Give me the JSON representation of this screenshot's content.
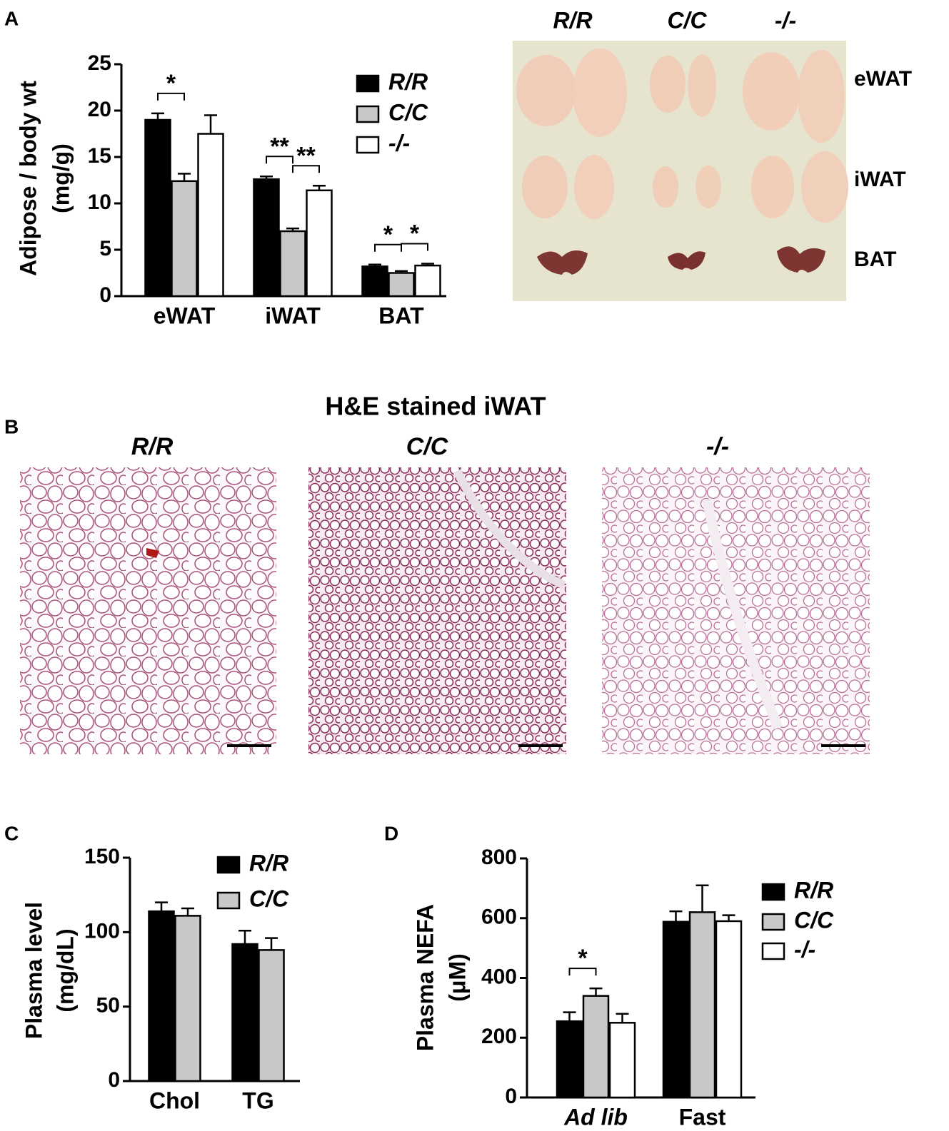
{
  "panel_labels": [
    "A",
    "B",
    "C",
    "D"
  ],
  "photo": {
    "columns": [
      "R/R",
      "C/C",
      "-/-"
    ],
    "rows": [
      "eWAT",
      "iWAT",
      "BAT"
    ]
  },
  "histology": {
    "title": "H&E stained iWAT",
    "columns": [
      "R/R",
      "C/C",
      "-/-"
    ]
  },
  "chart_data": [
    {
      "type": "bar",
      "ylabel": [
        "Adipose / body wt",
        "(mg/g)"
      ],
      "categories": [
        "eWAT",
        "iWAT",
        "BAT"
      ],
      "series": [
        {
          "name": "R/R",
          "color": "#000000",
          "values": [
            19,
            12.6,
            3.2
          ],
          "errors": [
            0.7,
            0.3,
            0.2
          ]
        },
        {
          "name": "C/C",
          "color": "#c8c8c8",
          "values": [
            12.4,
            7,
            2.5
          ],
          "errors": [
            0.8,
            0.3,
            0.2
          ]
        },
        {
          "name": "-/-",
          "color": "#ffffff",
          "values": [
            17.5,
            11.4,
            3.3
          ],
          "errors": [
            2,
            0.5,
            0.2
          ]
        }
      ],
      "ylim": [
        0,
        25
      ],
      "yticks": [
        0,
        5,
        10,
        15,
        20,
        25
      ],
      "annotations": [
        "*",
        "**",
        "**",
        "*",
        "*"
      ]
    },
    {
      "type": "bar",
      "ylabel": [
        "Plasma level",
        "(mg/dL)"
      ],
      "categories": [
        "Chol",
        "TG"
      ],
      "series": [
        {
          "name": "R/R",
          "color": "#000000",
          "values": [
            114,
            92
          ],
          "errors": [
            6,
            9
          ]
        },
        {
          "name": "C/C",
          "color": "#c8c8c8",
          "values": [
            111,
            88
          ],
          "errors": [
            5,
            8
          ]
        }
      ],
      "ylim": [
        0,
        150
      ],
      "yticks": [
        0,
        50,
        100,
        150
      ]
    },
    {
      "type": "bar",
      "ylabel": [
        "Plasma NEFA",
        "(μM)"
      ],
      "categories": [
        "Ad lib",
        "Fast"
      ],
      "series": [
        {
          "name": "R/R",
          "color": "#000000",
          "values": [
            255,
            588
          ],
          "errors": [
            30,
            35
          ]
        },
        {
          "name": "C/C",
          "color": "#c8c8c8",
          "values": [
            340,
            620
          ],
          "errors": [
            25,
            90
          ]
        },
        {
          "name": "-/-",
          "color": "#ffffff",
          "values": [
            250,
            590
          ],
          "errors": [
            30,
            20
          ]
        }
      ],
      "ylim": [
        0,
        800
      ],
      "yticks": [
        0,
        200,
        400,
        600,
        800
      ],
      "annotations": [
        "*"
      ]
    }
  ]
}
